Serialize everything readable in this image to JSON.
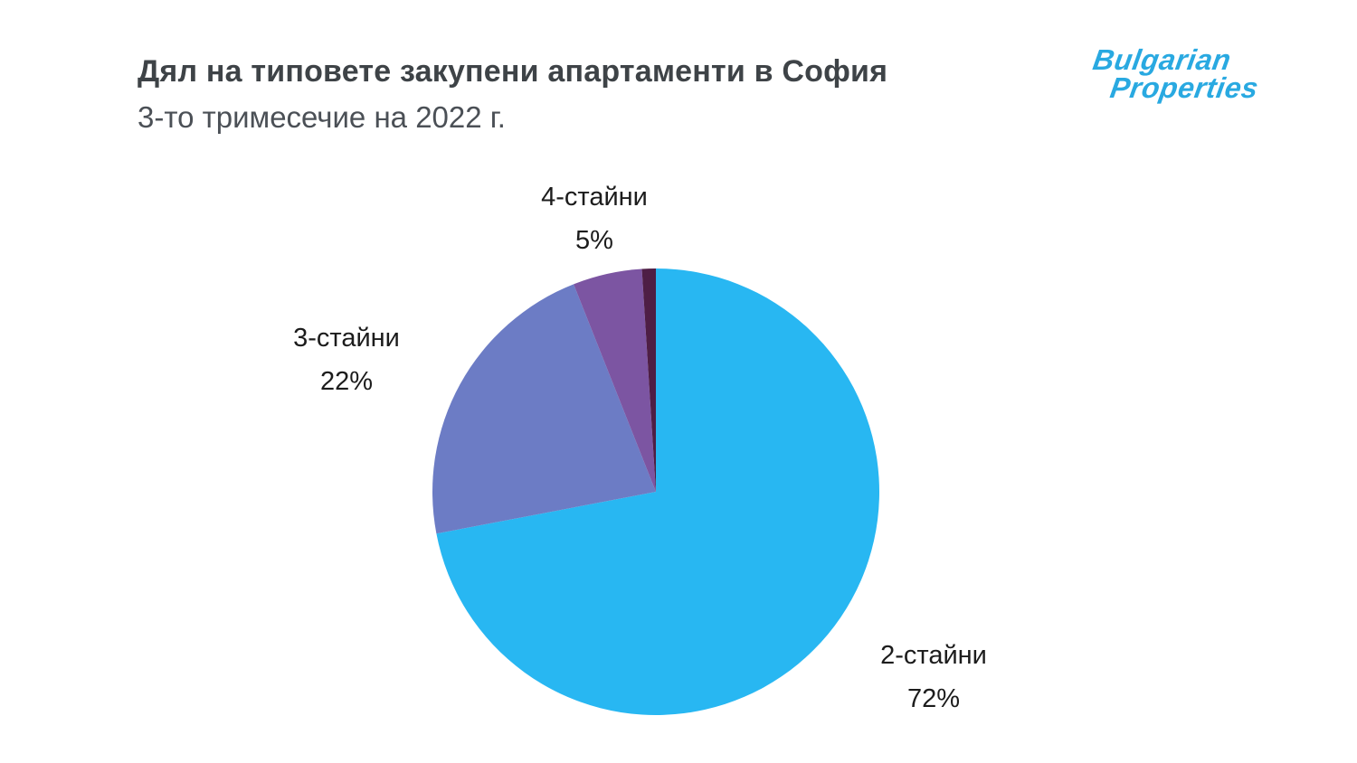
{
  "header": {
    "title": "Дял на типовете закупени апартаменти в София",
    "subtitle": "3-то тримесечие на 2022 г."
  },
  "logo": {
    "line1": "Bulgarian",
    "line2": "Properties",
    "color": "#29a9e1"
  },
  "chart_data": {
    "type": "pie",
    "title": "Дял на типовете закупени апартаменти в София",
    "subtitle": "3-то тримесечие на 2022 г.",
    "start_angle_deg": -90,
    "direction": "clockwise",
    "legend_position": "none",
    "labels_position": "outside",
    "slices": [
      {
        "label": "2-стайни",
        "value": 72,
        "pct_label": "72%",
        "color": "#28b7f2"
      },
      {
        "label": "3-стайни",
        "value": 22,
        "pct_label": "22%",
        "color": "#6c7cc5"
      },
      {
        "label": "4-стайни",
        "value": 5,
        "pct_label": "5%",
        "color": "#7c55a2"
      },
      {
        "label": "",
        "value": 1,
        "pct_label": "",
        "color": "#4e1e45"
      }
    ]
  }
}
